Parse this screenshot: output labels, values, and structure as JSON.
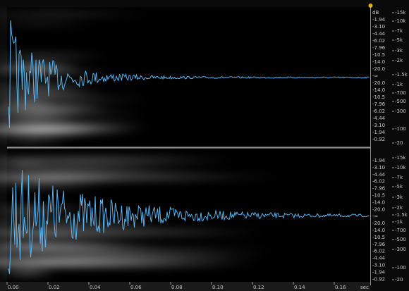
{
  "top_channel": {
    "db_scale": [
      "dB",
      "-1.94",
      "-3.10",
      "-4.44",
      "-6.02",
      "-7.96",
      "-10.5",
      "-14.0",
      "-20.0",
      "-∞",
      "-20.0",
      "-14.0",
      "-10.5",
      "-7.96",
      "-6.02",
      "-4.44",
      "-3.10",
      "-1.94",
      "-0.92"
    ],
    "freq_scale": [
      "-15k",
      "-10k",
      "-7k",
      "-5k",
      "-3k",
      "-2k",
      "-1.5k",
      "-1k",
      "-700",
      "-500",
      "-300",
      "-100",
      "-20"
    ]
  },
  "bottom_channel": {
    "db_scale": [
      "-1.94",
      "-3.10",
      "-4.44",
      "-6.02",
      "-7.96",
      "-10.5",
      "-14.0",
      "-20.0",
      "-∞",
      "-20.0",
      "-14.0",
      "-10.5",
      "-7.96",
      "-6.02",
      "-4.44",
      "-3.10",
      "-1.94",
      "-0.92"
    ],
    "freq_scale": [
      "-15k",
      "-10k",
      "-7k",
      "-5k",
      "-3k",
      "-2k",
      "-1.5k",
      "-1k",
      "-700",
      "-500",
      "-300",
      "-100",
      "-20"
    ]
  },
  "time_axis": {
    "labels": [
      "0.00",
      "0.02",
      "0.04",
      "0.06",
      "0.08",
      "0.10",
      "0.12",
      "0.14",
      "0.16"
    ],
    "unit": "sec"
  }
}
